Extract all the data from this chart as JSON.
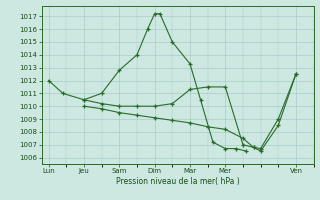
{
  "xlabel": "Pression niveau de la mer( hPa )",
  "background_color": "#cce8e0",
  "grid_color": "#aacccc",
  "line_color": "#2a6b2a",
  "ylim": [
    1005.5,
    1017.8
  ],
  "yticks": [
    1006,
    1007,
    1008,
    1009,
    1010,
    1011,
    1012,
    1013,
    1014,
    1015,
    1016,
    1017
  ],
  "xtick_labels": [
    "Lun",
    "Jeu",
    "Sam",
    "Dim",
    "Mar",
    "Mer",
    "Ven"
  ],
  "xtick_positions": [
    0,
    1,
    2,
    3,
    4,
    5,
    7
  ],
  "xlim": [
    -0.2,
    7.5
  ],
  "s1x": [
    0,
    0.4,
    1.0,
    1.5,
    2.0,
    2.5,
    2.8,
    3.0,
    3.15,
    3.5,
    4.0,
    4.3,
    4.65,
    5.0,
    5.3,
    5.6
  ],
  "s1y": [
    1012.0,
    1011.0,
    1010.5,
    1011.0,
    1012.8,
    1014.0,
    1016.0,
    1017.2,
    1017.2,
    1015.0,
    1013.3,
    1010.5,
    1007.2,
    1006.7,
    1006.7,
    1006.5
  ],
  "s2x": [
    1.0,
    1.5,
    2.0,
    2.5,
    3.0,
    3.5,
    4.0,
    4.5,
    5.0,
    5.5,
    5.8,
    6.0,
    6.5,
    7.0
  ],
  "s2y": [
    1010.5,
    1010.2,
    1010.0,
    1010.0,
    1010.0,
    1010.2,
    1011.3,
    1011.5,
    1011.5,
    1007.0,
    1006.8,
    1006.7,
    1009.0,
    1012.5
  ],
  "s3x": [
    1.0,
    1.5,
    2.0,
    2.5,
    3.0,
    3.5,
    4.0,
    4.5,
    5.0,
    5.5,
    5.8,
    6.0,
    6.5,
    7.0
  ],
  "s3y": [
    1010.0,
    1009.8,
    1009.5,
    1009.3,
    1009.1,
    1008.9,
    1008.7,
    1008.4,
    1008.2,
    1007.5,
    1006.8,
    1006.5,
    1008.5,
    1012.5
  ]
}
